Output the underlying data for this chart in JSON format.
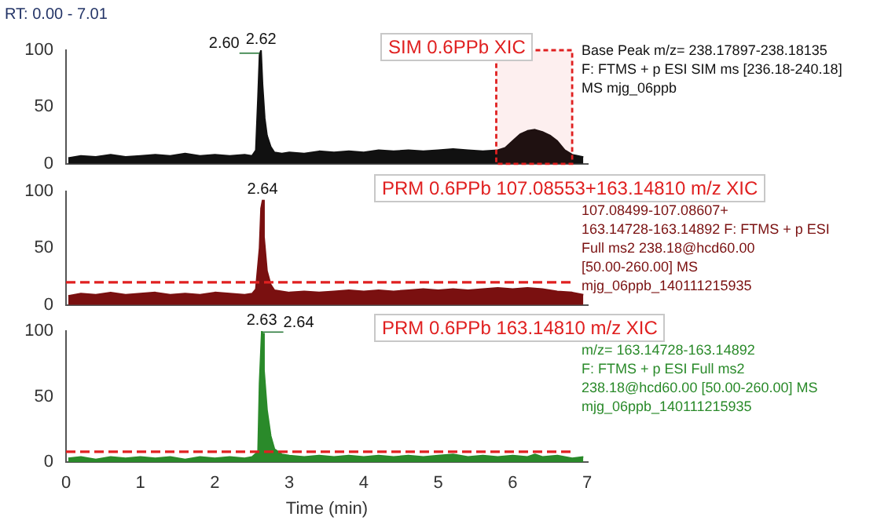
{
  "chart_data": [
    {
      "type": "area",
      "subtitle": "RT: 0.00 - 7.01",
      "title": "SIM 0.6PPb XIC",
      "xlim": [
        0,
        7.01
      ],
      "ylim": [
        0,
        100
      ],
      "yticks": [
        0,
        50,
        100
      ],
      "tick_labels": "y",
      "grid": false,
      "legend": false,
      "annotations": [
        {
          "text": "2.62",
          "x": 2.62,
          "y": 100
        },
        {
          "text": "2.60",
          "x": 2.6,
          "y": 96
        },
        "Base Peak m/z= 238.17897-238.18135",
        "F: FTMS + p ESI SIM ms [236.18-240.18]",
        "MS mjg_06ppb"
      ],
      "bands": [
        {
          "axis": "x",
          "from": 5.78,
          "to": 6.8,
          "color": "#e02020"
        }
      ],
      "series": [
        {
          "color": "#111111",
          "x": [
            0.03,
            0.2,
            0.4,
            0.6,
            0.8,
            1.0,
            1.2,
            1.4,
            1.6,
            1.8,
            2.0,
            2.2,
            2.4,
            2.5,
            2.55,
            2.58,
            2.6,
            2.62,
            2.64,
            2.67,
            2.7,
            2.75,
            2.8,
            2.9,
            3.0,
            3.2,
            3.4,
            3.6,
            3.8,
            4.0,
            4.2,
            4.4,
            4.6,
            4.8,
            5.0,
            5.2,
            5.4,
            5.6,
            5.8,
            5.9,
            6.0,
            6.1,
            6.2,
            6.3,
            6.4,
            6.5,
            6.6,
            6.7,
            6.8,
            6.95
          ],
          "values": [
            5,
            7,
            6,
            8,
            6,
            7,
            8,
            7,
            9,
            7,
            8,
            7,
            8,
            7,
            12,
            60,
            96,
            100,
            70,
            40,
            25,
            15,
            10,
            9,
            10,
            9,
            11,
            10,
            11,
            10,
            12,
            11,
            12,
            11,
            12,
            13,
            12,
            11,
            12,
            14,
            20,
            26,
            29,
            30,
            28,
            25,
            20,
            12,
            8,
            6
          ]
        }
      ]
    },
    {
      "type": "area",
      "title": "PRM 0.6PPb 107.08553+163.14810 m/z  XIC",
      "xlim": [
        0,
        7.01
      ],
      "ylim": [
        0,
        100
      ],
      "yticks": [
        0,
        50,
        100
      ],
      "tick_labels": "y",
      "grid": false,
      "legend": false,
      "annotations": [
        {
          "text": "2.64",
          "x": 2.64,
          "y": 92
        },
        "107.08499-107.08607+",
        "163.14728-163.14892 F: FTMS + p ESI",
        "Full ms2 238.18@hcd60.00",
        "[50.00-260.00]  MS",
        "mjg_06ppb_140111215935"
      ],
      "ref_lines": [
        {
          "axis": "y",
          "value": 20,
          "color": "#e02020",
          "line_style": "dashed"
        }
      ],
      "series": [
        {
          "color": "#7a1010",
          "x": [
            0.03,
            0.2,
            0.4,
            0.6,
            0.8,
            1.0,
            1.2,
            1.4,
            1.6,
            1.8,
            2.0,
            2.2,
            2.4,
            2.5,
            2.55,
            2.6,
            2.62,
            2.64,
            2.66,
            2.7,
            2.75,
            2.8,
            2.9,
            3.0,
            3.2,
            3.4,
            3.6,
            3.8,
            4.0,
            4.2,
            4.4,
            4.6,
            4.8,
            5.0,
            5.2,
            5.4,
            5.6,
            5.8,
            6.0,
            6.2,
            6.4,
            6.6,
            6.8,
            6.95
          ],
          "values": [
            8,
            10,
            9,
            11,
            9,
            10,
            11,
            9,
            10,
            9,
            11,
            10,
            9,
            10,
            14,
            50,
            85,
            92,
            60,
            30,
            18,
            13,
            12,
            11,
            12,
            11,
            12,
            13,
            12,
            13,
            12,
            13,
            14,
            13,
            14,
            13,
            14,
            15,
            14,
            15,
            14,
            12,
            11,
            9
          ]
        }
      ]
    },
    {
      "type": "area",
      "title": "PRM 0.6PPb 163.14810 m/z  XIC",
      "xlabel": "Time (min)",
      "xlim": [
        0,
        7.01
      ],
      "xticks": [
        0,
        1,
        2,
        3,
        4,
        5,
        6,
        7
      ],
      "ylim": [
        0,
        100
      ],
      "yticks": [
        0,
        50,
        100
      ],
      "grid": false,
      "legend": false,
      "annotations": [
        {
          "text": "2.63",
          "x": 2.63,
          "y": 100
        },
        {
          "text": "2.64",
          "x": 2.64,
          "y": 98
        },
        "m/z= 163.14728-163.14892",
        "F: FTMS + p ESI Full ms2",
        "238.18@hcd60.00 [50.00-260.00]  MS",
        "mjg_06ppb_140111215935"
      ],
      "ref_lines": [
        {
          "axis": "y",
          "value": 8,
          "color": "#e02020",
          "line_style": "dashed"
        }
      ],
      "series": [
        {
          "color": "#2a8a2a",
          "x": [
            0.03,
            0.2,
            0.4,
            0.6,
            0.8,
            1.0,
            1.2,
            1.4,
            1.6,
            1.8,
            2.0,
            2.2,
            2.4,
            2.5,
            2.58,
            2.6,
            2.63,
            2.64,
            2.66,
            2.7,
            2.75,
            2.8,
            2.9,
            3.0,
            3.2,
            3.4,
            3.6,
            3.8,
            4.0,
            4.2,
            4.4,
            4.6,
            4.8,
            5.0,
            5.2,
            5.4,
            5.6,
            5.8,
            6.0,
            6.2,
            6.3,
            6.4,
            6.6,
            6.8,
            6.95
          ],
          "values": [
            3,
            4,
            2,
            4,
            3,
            4,
            3,
            4,
            2,
            4,
            3,
            4,
            3,
            4,
            8,
            60,
            100,
            98,
            70,
            40,
            20,
            10,
            6,
            5,
            4,
            5,
            4,
            5,
            4,
            5,
            4,
            5,
            4,
            5,
            6,
            4,
            5,
            4,
            5,
            4,
            6,
            4,
            5,
            3,
            4
          ]
        }
      ]
    }
  ]
}
